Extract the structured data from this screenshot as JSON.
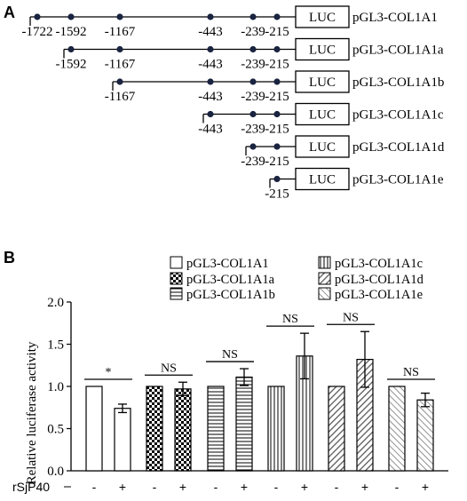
{
  "panel_a": {
    "letter": "A",
    "luc_label": "LUC",
    "constructs": [
      {
        "name": "pGL3-COL1A1",
        "positions": [
          "-1722",
          "-1592",
          "-1167",
          "-443",
          "-239",
          "-215"
        ]
      },
      {
        "name": "pGL3-COL1A1a",
        "positions": [
          "-1592",
          "-1167",
          "-443",
          "-239",
          "-215"
        ]
      },
      {
        "name": "pGL3-COL1A1b",
        "positions": [
          "-1167",
          "-443",
          "-239",
          "-215"
        ]
      },
      {
        "name": "pGL3-COL1A1c",
        "positions": [
          "-443",
          "-239",
          "-215"
        ]
      },
      {
        "name": "pGL3-COL1A1d",
        "positions": [
          "-239",
          "-215"
        ]
      },
      {
        "name": "pGL3-COL1A1e",
        "positions": [
          "-215"
        ]
      }
    ]
  },
  "panel_b": {
    "letter": "B",
    "treatment_label": "rSjP40",
    "minus": "-",
    "plus": "+",
    "sig_labels": [
      "*",
      "NS",
      "NS",
      "NS",
      "NS",
      "NS"
    ]
  },
  "chart_data": {
    "type": "bar",
    "ylabel": "Relative luciferase activity",
    "ylim": [
      0.0,
      2.0
    ],
    "yticks": [
      "0.0",
      "0.5",
      "1.0",
      "1.5",
      "2.0"
    ],
    "groups": [
      "pGL3-COL1A1",
      "pGL3-COL1A1a",
      "pGL3-COL1A1b",
      "pGL3-COL1A1c",
      "pGL3-COL1A1d",
      "pGL3-COL1A1e"
    ],
    "categories": [
      "-",
      "+"
    ],
    "series": [
      {
        "name": "pGL3-COL1A1",
        "pattern": "empty",
        "values": [
          1.0,
          0.74
        ],
        "errors": [
          0.0,
          0.05
        ]
      },
      {
        "name": "pGL3-COL1A1a",
        "pattern": "checker",
        "values": [
          1.0,
          0.97
        ],
        "errors": [
          0.0,
          0.08
        ]
      },
      {
        "name": "pGL3-COL1A1b",
        "pattern": "horizontal",
        "values": [
          1.0,
          1.11
        ],
        "errors": [
          0.0,
          0.1
        ]
      },
      {
        "name": "pGL3-COL1A1c",
        "pattern": "vertical",
        "values": [
          1.0,
          1.36
        ],
        "errors": [
          0.0,
          0.27
        ]
      },
      {
        "name": "pGL3-COL1A1d",
        "pattern": "diagonal",
        "values": [
          1.0,
          1.32
        ],
        "errors": [
          0.0,
          0.33
        ]
      },
      {
        "name": "pGL3-COL1A1e",
        "pattern": "diagonal-light",
        "values": [
          1.0,
          0.84
        ],
        "errors": [
          0.0,
          0.08
        ]
      }
    ],
    "legend_position": "top"
  }
}
